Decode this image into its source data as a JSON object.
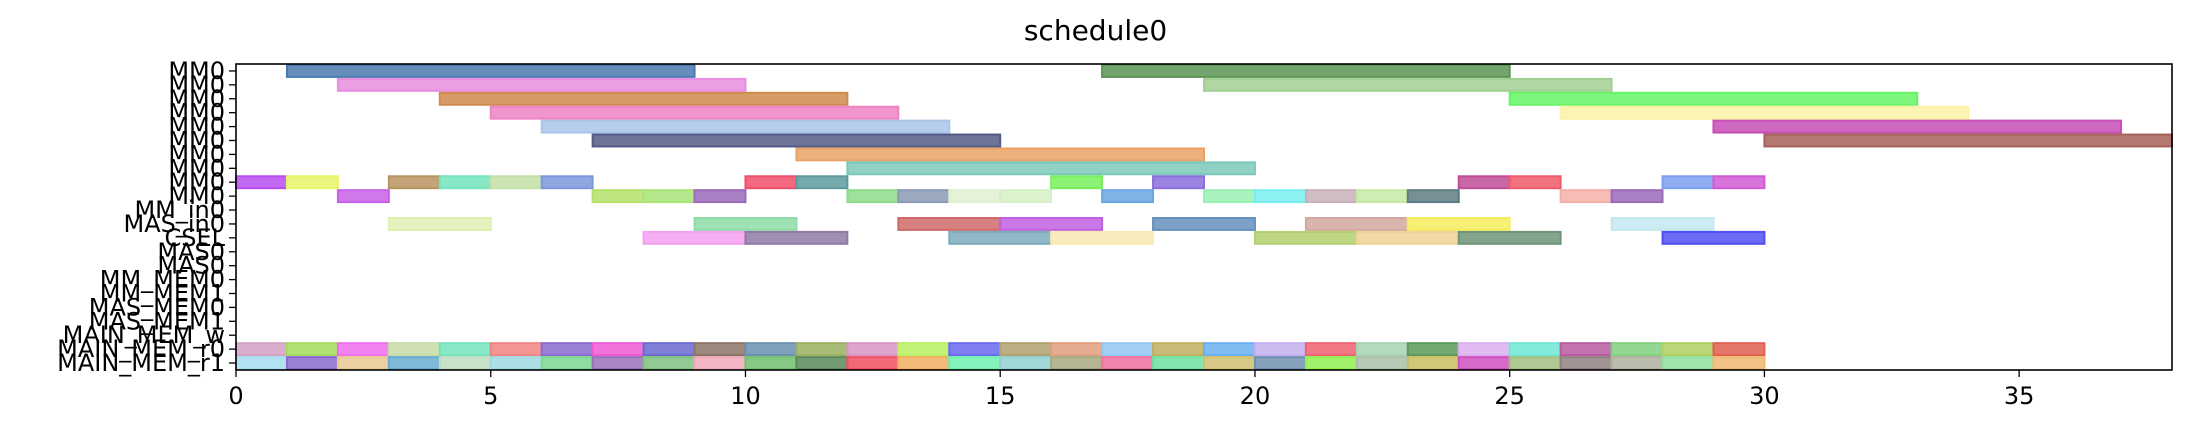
{
  "chart_data": {
    "type": "gantt",
    "title": "schedule0",
    "xlabel": "",
    "ylabel": "",
    "xlim": [
      0,
      38
    ],
    "xticks": [
      0,
      5,
      10,
      15,
      20,
      25,
      30,
      35
    ],
    "grid": false,
    "rows": [
      "MM0",
      "MM0",
      "MM0",
      "MM0",
      "MM0",
      "MM0",
      "MM0",
      "MM0",
      "MM0",
      "MM0",
      "MM_in0",
      "MAS_in0",
      "CSEL",
      "MAS0",
      "MAS0",
      "MM_MEM0",
      "MM_MEM1",
      "MAS_MEM0",
      "MAS_MEM1",
      "MAIN_MEM_w",
      "MAIN_MEM_r0",
      "MAIN_MEM_r1"
    ],
    "bars": [
      {
        "row": 0,
        "start": 1,
        "end": 9,
        "color": "#4a7aaf"
      },
      {
        "row": 0,
        "start": 17,
        "end": 25,
        "color": "#5c9454"
      },
      {
        "row": 1,
        "start": 2,
        "end": 10,
        "color": "#e68ee0"
      },
      {
        "row": 1,
        "start": 19,
        "end": 27,
        "color": "#a2cf94"
      },
      {
        "row": 2,
        "start": 4,
        "end": 12,
        "color": "#d08a4e"
      },
      {
        "row": 2,
        "start": 25,
        "end": 33,
        "color": "#66f466"
      },
      {
        "row": 3,
        "start": 5,
        "end": 13,
        "color": "#ee84c4"
      },
      {
        "row": 3,
        "start": 26,
        "end": 34,
        "color": "#fbf2a6"
      },
      {
        "row": 4,
        "start": 6,
        "end": 14,
        "color": "#a9c6e9"
      },
      {
        "row": 4,
        "start": 29,
        "end": 37,
        "color": "#c74eb6"
      },
      {
        "row": 5,
        "start": 7,
        "end": 15,
        "color": "#535c86"
      },
      {
        "row": 5,
        "start": 30,
        "end": 38,
        "color": "#a4625a"
      },
      {
        "row": 6,
        "start": 11,
        "end": 19,
        "color": "#e9a366"
      },
      {
        "row": 7,
        "start": 12,
        "end": 20,
        "color": "#7cc9ba"
      },
      {
        "row": 8,
        "start": 0,
        "end": 1,
        "color": "#b84ef0"
      },
      {
        "row": 8,
        "start": 1,
        "end": 2,
        "color": "#e8f46a"
      },
      {
        "row": 8,
        "start": 3,
        "end": 4,
        "color": "#b8935f"
      },
      {
        "row": 8,
        "start": 4,
        "end": 5,
        "color": "#74e4bc"
      },
      {
        "row": 8,
        "start": 5,
        "end": 6,
        "color": "#c4e0a8"
      },
      {
        "row": 8,
        "start": 6,
        "end": 7,
        "color": "#7c98dc"
      },
      {
        "row": 8,
        "start": 10,
        "end": 11,
        "color": "#f04e6a"
      },
      {
        "row": 8,
        "start": 11,
        "end": 12,
        "color": "#5e9a9c"
      },
      {
        "row": 8,
        "start": 16,
        "end": 17,
        "color": "#78f05e"
      },
      {
        "row": 8,
        "start": 18,
        "end": 19,
        "color": "#8a6edc"
      },
      {
        "row": 8,
        "start": 24,
        "end": 25,
        "color": "#c04e96"
      },
      {
        "row": 8,
        "start": 25,
        "end": 26,
        "color": "#f05a6a"
      },
      {
        "row": 8,
        "start": 28,
        "end": 29,
        "color": "#7c9ef0"
      },
      {
        "row": 8,
        "start": 29,
        "end": 30,
        "color": "#d05ad4"
      },
      {
        "row": 9,
        "start": 2,
        "end": 3,
        "color": "#c860e8"
      },
      {
        "row": 9,
        "start": 7,
        "end": 8,
        "color": "#b4e06a"
      },
      {
        "row": 9,
        "start": 8,
        "end": 9,
        "color": "#a8e478"
      },
      {
        "row": 9,
        "start": 9,
        "end": 10,
        "color": "#9a6ab8"
      },
      {
        "row": 9,
        "start": 12,
        "end": 13,
        "color": "#8edc8a"
      },
      {
        "row": 9,
        "start": 13,
        "end": 14,
        "color": "#8a9ab4"
      },
      {
        "row": 9,
        "start": 14,
        "end": 15,
        "color": "#e0f0d4"
      },
      {
        "row": 9,
        "start": 15,
        "end": 16,
        "color": "#d4f0c4"
      },
      {
        "row": 9,
        "start": 17,
        "end": 18,
        "color": "#6aa4e4"
      },
      {
        "row": 9,
        "start": 19,
        "end": 20,
        "color": "#9af0b4"
      },
      {
        "row": 9,
        "start": 20,
        "end": 21,
        "color": "#78eef0"
      },
      {
        "row": 9,
        "start": 21,
        "end": 22,
        "color": "#c8b0b8"
      },
      {
        "row": 9,
        "start": 22,
        "end": 23,
        "color": "#c6eaa4"
      },
      {
        "row": 9,
        "start": 23,
        "end": 24,
        "color": "#5e7c84"
      },
      {
        "row": 9,
        "start": 26,
        "end": 27,
        "color": "#f4b0a8"
      },
      {
        "row": 9,
        "start": 27,
        "end": 28,
        "color": "#9a6ab8"
      },
      {
        "row": 11,
        "start": 3,
        "end": 5,
        "color": "#e0eeb4"
      },
      {
        "row": 11,
        "start": 9,
        "end": 11,
        "color": "#8edca8"
      },
      {
        "row": 11,
        "start": 13,
        "end": 15,
        "color": "#d06a6a"
      },
      {
        "row": 11,
        "start": 15,
        "end": 17,
        "color": "#c060e0"
      },
      {
        "row": 11,
        "start": 18,
        "end": 20,
        "color": "#6690bc"
      },
      {
        "row": 11,
        "start": 21,
        "end": 23,
        "color": "#d4a8a0"
      },
      {
        "row": 11,
        "start": 23,
        "end": 25,
        "color": "#f4ee5e"
      },
      {
        "row": 11,
        "start": 27,
        "end": 29,
        "color": "#c4e8f0"
      },
      {
        "row": 12,
        "start": 8,
        "end": 10,
        "color": "#f4a0f0"
      },
      {
        "row": 12,
        "start": 10,
        "end": 12,
        "color": "#907aa4"
      },
      {
        "row": 12,
        "start": 14,
        "end": 16,
        "color": "#7cacbc"
      },
      {
        "row": 12,
        "start": 16,
        "end": 18,
        "color": "#f8eab4"
      },
      {
        "row": 12,
        "start": 20,
        "end": 22,
        "color": "#b4d070"
      },
      {
        "row": 12,
        "start": 22,
        "end": 24,
        "color": "#eed296"
      },
      {
        "row": 12,
        "start": 24,
        "end": 26,
        "color": "#6e9478"
      },
      {
        "row": 12,
        "start": 28,
        "end": 30,
        "color": "#5050f0"
      },
      {
        "row": 20,
        "start": 0,
        "end": 1,
        "color": "#d4a0c4"
      },
      {
        "row": 20,
        "start": 1,
        "end": 2,
        "color": "#a4dc5e"
      },
      {
        "row": 20,
        "start": 2,
        "end": 3,
        "color": "#f06ef0"
      },
      {
        "row": 20,
        "start": 3,
        "end": 4,
        "color": "#c8dca8"
      },
      {
        "row": 20,
        "start": 4,
        "end": 5,
        "color": "#74e4bc"
      },
      {
        "row": 20,
        "start": 5,
        "end": 6,
        "color": "#f08484"
      },
      {
        "row": 20,
        "start": 6,
        "end": 7,
        "color": "#8a6ad0"
      },
      {
        "row": 20,
        "start": 7,
        "end": 8,
        "color": "#f05ad4"
      },
      {
        "row": 20,
        "start": 8,
        "end": 9,
        "color": "#6a6ad0"
      },
      {
        "row": 20,
        "start": 9,
        "end": 10,
        "color": "#8c7466"
      },
      {
        "row": 20,
        "start": 10,
        "end": 11,
        "color": "#6a90b0"
      },
      {
        "row": 20,
        "start": 11,
        "end": 12,
        "color": "#9ab060"
      },
      {
        "row": 20,
        "start": 12,
        "end": 13,
        "color": "#d896c4"
      },
      {
        "row": 20,
        "start": 13,
        "end": 14,
        "color": "#b8f060"
      },
      {
        "row": 20,
        "start": 14,
        "end": 15,
        "color": "#6a6af0"
      },
      {
        "row": 20,
        "start": 15,
        "end": 16,
        "color": "#b0a070"
      },
      {
        "row": 20,
        "start": 16,
        "end": 17,
        "color": "#e0a080"
      },
      {
        "row": 20,
        "start": 17,
        "end": 18,
        "color": "#90c8f0"
      },
      {
        "row": 20,
        "start": 18,
        "end": 19,
        "color": "#c0b060"
      },
      {
        "row": 20,
        "start": 19,
        "end": 20,
        "color": "#6ab0f0"
      },
      {
        "row": 20,
        "start": 20,
        "end": 21,
        "color": "#c4b0f0"
      },
      {
        "row": 20,
        "start": 21,
        "end": 22,
        "color": "#f06070"
      },
      {
        "row": 20,
        "start": 22,
        "end": 23,
        "color": "#a8d4b0"
      },
      {
        "row": 20,
        "start": 23,
        "end": 24,
        "color": "#5a9a5a"
      },
      {
        "row": 20,
        "start": 24,
        "end": 25,
        "color": "#dcb0f0"
      },
      {
        "row": 20,
        "start": 25,
        "end": 26,
        "color": "#6ee8d4"
      },
      {
        "row": 20,
        "start": 26,
        "end": 27,
        "color": "#b85aa0"
      },
      {
        "row": 20,
        "start": 27,
        "end": 28,
        "color": "#80d080"
      },
      {
        "row": 20,
        "start": 28,
        "end": 29,
        "color": "#b0d060"
      },
      {
        "row": 20,
        "start": 29,
        "end": 30,
        "color": "#e06050"
      },
      {
        "row": 21,
        "start": 0,
        "end": 1,
        "color": "#a4dcf0"
      },
      {
        "row": 21,
        "start": 1,
        "end": 2,
        "color": "#8a6ad0"
      },
      {
        "row": 21,
        "start": 2,
        "end": 3,
        "color": "#e8c890"
      },
      {
        "row": 21,
        "start": 3,
        "end": 4,
        "color": "#6aacd0"
      },
      {
        "row": 21,
        "start": 4,
        "end": 5,
        "color": "#c0dcc0"
      },
      {
        "row": 21,
        "start": 5,
        "end": 6,
        "color": "#a0d8e0"
      },
      {
        "row": 21,
        "start": 6,
        "end": 7,
        "color": "#7ad890"
      },
      {
        "row": 21,
        "start": 7,
        "end": 8,
        "color": "#9a70b8"
      },
      {
        "row": 21,
        "start": 8,
        "end": 9,
        "color": "#80c080"
      },
      {
        "row": 21,
        "start": 9,
        "end": 10,
        "color": "#f0a8b8"
      },
      {
        "row": 21,
        "start": 10,
        "end": 11,
        "color": "#70c070"
      },
      {
        "row": 21,
        "start": 11,
        "end": 12,
        "color": "#5a8a5a"
      },
      {
        "row": 21,
        "start": 12,
        "end": 13,
        "color": "#f05060"
      },
      {
        "row": 21,
        "start": 13,
        "end": 14,
        "color": "#f0b060"
      },
      {
        "row": 21,
        "start": 14,
        "end": 15,
        "color": "#70f0b0"
      },
      {
        "row": 21,
        "start": 15,
        "end": 16,
        "color": "#90d0d0"
      },
      {
        "row": 21,
        "start": 16,
        "end": 17,
        "color": "#a8a880"
      },
      {
        "row": 21,
        "start": 17,
        "end": 18,
        "color": "#f070a0"
      },
      {
        "row": 21,
        "start": 18,
        "end": 19,
        "color": "#70e0a0"
      },
      {
        "row": 21,
        "start": 19,
        "end": 20,
        "color": "#d0c070"
      },
      {
        "row": 21,
        "start": 20,
        "end": 21,
        "color": "#7090b0"
      },
      {
        "row": 21,
        "start": 21,
        "end": 22,
        "color": "#90f050"
      },
      {
        "row": 21,
        "start": 22,
        "end": 23,
        "color": "#a8c0a8"
      },
      {
        "row": 21,
        "start": 23,
        "end": 24,
        "color": "#c8c060"
      },
      {
        "row": 21,
        "start": 24,
        "end": 25,
        "color": "#d050c0"
      },
      {
        "row": 21,
        "start": 25,
        "end": 26,
        "color": "#a0c080"
      },
      {
        "row": 21,
        "start": 26,
        "end": 27,
        "color": "#908080"
      },
      {
        "row": 21,
        "start": 27,
        "end": 28,
        "color": "#b0b0a0"
      },
      {
        "row": 21,
        "start": 28,
        "end": 29,
        "color": "#90e0a0"
      },
      {
        "row": 21,
        "start": 29,
        "end": 30,
        "color": "#f0b870"
      }
    ]
  }
}
